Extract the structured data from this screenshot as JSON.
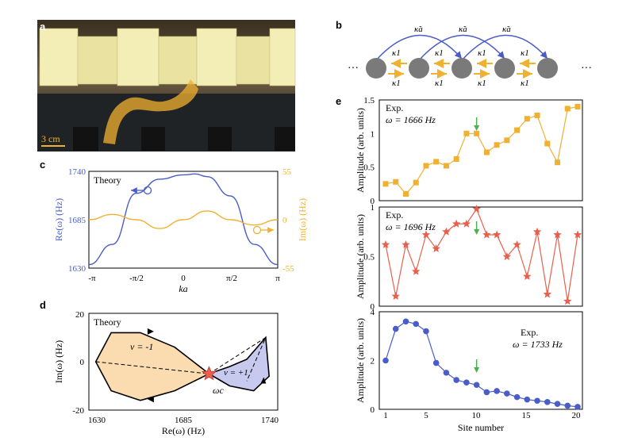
{
  "panels": {
    "a": {
      "label": "a",
      "scale_text": "3 cm"
    },
    "b": {
      "label": "b",
      "kappa_a": "κ̃a",
      "kappa_1": "κ1",
      "dots": "···"
    },
    "c": {
      "label": "c",
      "note": "Theory",
      "ylabel_left": "Re(ω) (Hz)",
      "ylabel_right": "Im(ω) (Hz)",
      "xlabel": "ka",
      "xticks": [
        "-π",
        "-π/2",
        "0",
        "π/2",
        "π"
      ],
      "yticks_left": [
        "1740",
        "1685",
        "1630"
      ],
      "yticks_right": [
        "55",
        "0",
        "-55"
      ]
    },
    "d": {
      "label": "d",
      "note": "Theory",
      "ylabel": "Im(ω) (Hz)",
      "xlabel": "Re(ω) (Hz)",
      "xticks": [
        "1630",
        "1685",
        "1740"
      ],
      "yticks": [
        "20",
        "0",
        "-20"
      ],
      "nu_left": "ν = -1",
      "nu_right": "ν = +1",
      "omega_c": "ωc"
    },
    "e": {
      "label": "e",
      "xlabel": "Site number",
      "xticks": [
        "1",
        "5",
        "10",
        "15",
        "20"
      ],
      "subplots": [
        {
          "exp": "Exp.",
          "omega": "ω = 1666 Hz",
          "ylabel": "Amplitude (arb. units)",
          "yticks": [
            "1.5",
            "1",
            "0.5",
            "0"
          ],
          "color": "#f0b030"
        },
        {
          "exp": "Exp.",
          "omega": "ω = 1696 Hz",
          "ylabel": "Amplitude (arb. units)",
          "yticks": [
            "1",
            "0.5",
            "0"
          ],
          "color": "#e8604c"
        },
        {
          "exp": "Exp.",
          "omega": "ω = 1733 Hz",
          "ylabel": "Amplitude (arb. units)",
          "yticks": [
            "4",
            "2",
            "0"
          ],
          "color": "#4a5cc8"
        }
      ]
    }
  },
  "chart_data": [
    {
      "type": "line",
      "panel": "c",
      "x_range": [
        -3.1416,
        3.1416
      ],
      "series": [
        {
          "axis": "left",
          "color": "#4a5cc8",
          "ylim": [
            1630,
            1740
          ],
          "x": [
            -3.14,
            -2.36,
            -1.57,
            -0.79,
            0,
            0.4,
            0.79,
            1.57,
            2.36,
            3.14
          ],
          "y": [
            1634,
            1657,
            1715,
            1731,
            1736,
            1737,
            1734,
            1712,
            1657,
            1634
          ]
        },
        {
          "axis": "right",
          "color": "#f0b030",
          "ylim": [
            -55,
            55
          ],
          "x": [
            -3.14,
            -2.36,
            -1.57,
            -0.79,
            0,
            0.79,
            1.57,
            2.36,
            3.14
          ],
          "y": [
            0,
            6,
            0,
            -10,
            0,
            10,
            0,
            -6,
            0
          ]
        }
      ]
    },
    {
      "type": "line",
      "panel": "d",
      "xlim": [
        1630,
        1740
      ],
      "ylim": [
        -20,
        20
      ],
      "series": [
        {
          "name": "loop1",
          "x": [
            1700,
            1680,
            1660,
            1643,
            1634,
            1643,
            1660,
            1680,
            1700
          ],
          "y": [
            -5,
            6,
            12,
            12,
            0,
            -12,
            -16,
            -12,
            -5
          ]
        },
        {
          "name": "loop2",
          "x": [
            1700,
            1712,
            1726,
            1735,
            1733,
            1722,
            1712,
            1700
          ],
          "y": [
            -5,
            -10,
            -12,
            -6,
            10,
            1,
            -2,
            -5
          ]
        }
      ]
    },
    {
      "type": "line",
      "panel": "e1",
      "ylim": [
        0,
        1.5
      ],
      "x": [
        1,
        2,
        3,
        4,
        5,
        6,
        7,
        8,
        9,
        10,
        11,
        12,
        13,
        14,
        15,
        16,
        17,
        18,
        19,
        20
      ],
      "y": [
        0.25,
        0.28,
        0.1,
        0.27,
        0.52,
        0.58,
        0.52,
        0.62,
        1.0,
        1.0,
        0.72,
        0.83,
        0.9,
        1.05,
        1.22,
        1.27,
        0.85,
        0.57,
        1.37,
        1.4
      ]
    },
    {
      "type": "line",
      "panel": "e2",
      "ylim": [
        0,
        1
      ],
      "x": [
        1,
        2,
        3,
        4,
        5,
        6,
        7,
        8,
        9,
        10,
        11,
        12,
        13,
        14,
        15,
        16,
        17,
        18,
        19,
        20
      ],
      "y": [
        0.62,
        0.1,
        0.62,
        0.35,
        0.72,
        0.58,
        0.75,
        0.83,
        0.83,
        0.98,
        0.72,
        0.72,
        0.5,
        0.62,
        0.3,
        0.75,
        0.12,
        0.72,
        0.05,
        0.72
      ]
    },
    {
      "type": "line",
      "panel": "e3",
      "ylim": [
        0,
        4
      ],
      "x": [
        1,
        2,
        3,
        4,
        5,
        6,
        7,
        8,
        9,
        10,
        11,
        12,
        13,
        14,
        15,
        16,
        17,
        18,
        19,
        20
      ],
      "y": [
        2.0,
        3.3,
        3.6,
        3.5,
        3.2,
        1.9,
        1.5,
        1.2,
        1.1,
        1.0,
        0.7,
        0.75,
        0.65,
        0.5,
        0.4,
        0.35,
        0.3,
        0.22,
        0.15,
        0.1
      ]
    }
  ]
}
